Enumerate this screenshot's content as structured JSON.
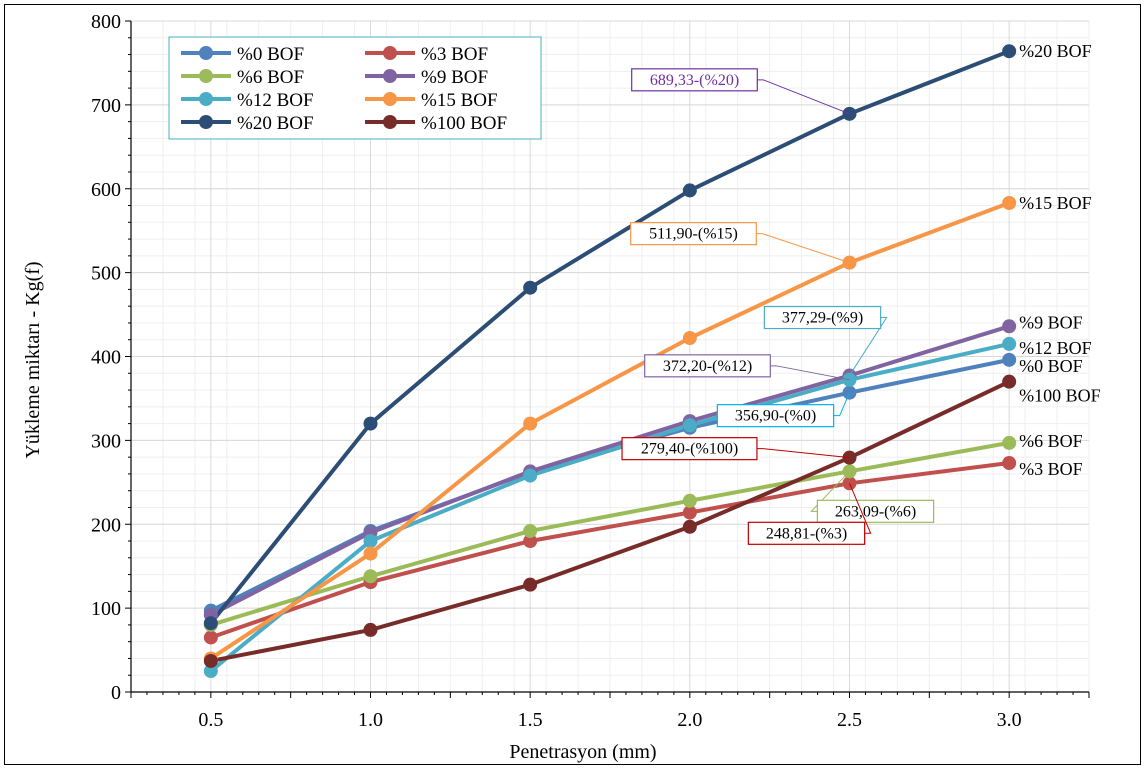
{
  "chart_data": {
    "type": "line",
    "xlabel": "Penetrasyon (mm)",
    "ylabel": "Yükleme miktarı - Kg(f)",
    "x": [
      0.5,
      1.0,
      1.5,
      2.0,
      2.5,
      3.0
    ],
    "x_tick_labels": [
      "0.5",
      "1.0",
      "1.5",
      "2.0",
      "2.5",
      "3.0"
    ],
    "xlim": [
      0.25,
      3.25
    ],
    "ylim": [
      0,
      800
    ],
    "y_ticks": [
      0,
      100,
      200,
      300,
      400,
      500,
      600,
      700,
      800
    ],
    "grid": true,
    "legend_position": "top-left",
    "series": [
      {
        "name": "%0 BOF",
        "color": "#4f81bd",
        "values": [
          97,
          192,
          262,
          315,
          356.9,
          396
        ],
        "end_label": "%0 BOF"
      },
      {
        "name": "%3 BOF",
        "color": "#c0504d",
        "values": [
          65,
          131,
          180,
          214,
          248.81,
          273
        ],
        "end_label": "%3 BOF"
      },
      {
        "name": "%6 BOF",
        "color": "#9bbb59",
        "values": [
          80,
          138,
          192,
          228,
          263.09,
          297
        ],
        "end_label": "%6 BOF"
      },
      {
        "name": "%9 BOF",
        "color": "#8064a2",
        "values": [
          92,
          190,
          263,
          323,
          377.29,
          436
        ],
        "end_label": "%9 BOF"
      },
      {
        "name": "%12 BOF",
        "color": "#4bacc6",
        "values": [
          25,
          180,
          258,
          318,
          372.2,
          415
        ],
        "end_label": "%12 BOF"
      },
      {
        "name": "%15 BOF",
        "color": "#f79646",
        "values": [
          40,
          165,
          320,
          422,
          511.9,
          583
        ],
        "end_label": "%15 BOF"
      },
      {
        "name": "%20 BOF",
        "color": "#2c4d75",
        "values": [
          82,
          320,
          482,
          598,
          689.33,
          764
        ],
        "end_label": "%20 BOF"
      },
      {
        "name": "%100 BOF",
        "color": "#772c2a",
        "values": [
          37,
          74,
          128,
          197,
          279.4,
          370
        ],
        "end_label": "%100 BOF"
      }
    ],
    "annotations": [
      {
        "text": "689,33-(%20)",
        "series": "%20 BOF",
        "x": 2.5,
        "border": "#7030a0",
        "color": "#7030a0"
      },
      {
        "text": "511,90-(%15)",
        "series": "%15 BOF",
        "x": 2.5,
        "border": "#f79646",
        "color": "#000000"
      },
      {
        "text": "377,29-(%9)",
        "series": "%9 BOF",
        "x": 2.5,
        "border": "#4bacc6",
        "color": "#000000"
      },
      {
        "text": "372,20-(%12)",
        "series": "%12 BOF",
        "x": 2.5,
        "border": "#8064a2",
        "color": "#000000"
      },
      {
        "text": "356,90-(%0)",
        "series": "%0 BOF",
        "x": 2.5,
        "border": "#00b0f0",
        "color": "#000000"
      },
      {
        "text": "279,40-(%100)",
        "series": "%100 BOF",
        "x": 2.5,
        "border": "#c00000",
        "color": "#000000"
      },
      {
        "text": "263,09-(%6)",
        "series": "%6 BOF",
        "x": 2.5,
        "border": "#9bbb59",
        "color": "#000000"
      },
      {
        "text": "248,81-(%3)",
        "series": "%3 BOF",
        "x": 2.5,
        "border": "#c00000",
        "color": "#000000"
      }
    ]
  }
}
